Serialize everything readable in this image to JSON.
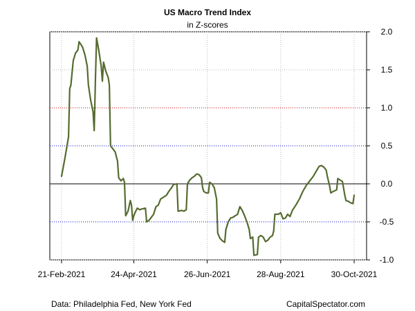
{
  "chart_data": {
    "type": "line",
    "title": "US Macro Trend Index",
    "subtitle": "in Z-scores",
    "xlabel": "",
    "ylabel": "",
    "x_tick_labels": [
      "21-Feb-2021",
      "24-Apr-2021",
      "26-Jun-2021",
      "28-Aug-2021",
      "30-Oct-2021"
    ],
    "x_ticks": [
      "2021-02-21",
      "2021-04-24",
      "2021-06-26",
      "2021-08-28",
      "2021-10-30"
    ],
    "y_ticks": [
      2.0,
      1.5,
      1.0,
      0.5,
      0.0,
      -0.5,
      -1.0
    ],
    "y_tick_labels": [
      "2.0",
      "1.5",
      "1.0",
      "0.5",
      "0.0",
      "-0.5",
      "-1.0"
    ],
    "ylim": [
      -1.0,
      2.0
    ],
    "y_axis_side": "right",
    "grid": true,
    "reference_lines": [
      {
        "y": 1.0,
        "color": "#cc0000",
        "style": "dotted"
      },
      {
        "y": 0.5,
        "color": "#0000cc",
        "style": "dotted"
      },
      {
        "y": 0.0,
        "color": "#000000",
        "style": "solid"
      },
      {
        "y": -0.5,
        "color": "#0000cc",
        "style": "dotted"
      }
    ],
    "series_color": "#556b2f",
    "series": [
      {
        "name": "",
        "points": [
          [
            "2021-02-21",
            0.1
          ],
          [
            "2021-02-24",
            0.35
          ],
          [
            "2021-02-27",
            0.62
          ],
          [
            "2021-02-28",
            1.25
          ],
          [
            "2021-03-01",
            1.3
          ],
          [
            "2021-03-03",
            1.62
          ],
          [
            "2021-03-05",
            1.72
          ],
          [
            "2021-03-07",
            1.76
          ],
          [
            "2021-03-08",
            1.87
          ],
          [
            "2021-03-11",
            1.8
          ],
          [
            "2021-03-13",
            1.7
          ],
          [
            "2021-03-15",
            1.55
          ],
          [
            "2021-03-16",
            1.3
          ],
          [
            "2021-03-18",
            1.1
          ],
          [
            "2021-03-20",
            0.95
          ],
          [
            "2021-03-21",
            0.7
          ],
          [
            "2021-03-22",
            1.35
          ],
          [
            "2021-03-23",
            1.92
          ],
          [
            "2021-03-25",
            1.75
          ],
          [
            "2021-03-27",
            1.55
          ],
          [
            "2021-03-28",
            1.35
          ],
          [
            "2021-03-29",
            1.6
          ],
          [
            "2021-03-31",
            1.48
          ],
          [
            "2021-04-02",
            1.4
          ],
          [
            "2021-04-03",
            1.3
          ],
          [
            "2021-04-04",
            0.5
          ],
          [
            "2021-04-06",
            0.46
          ],
          [
            "2021-04-08",
            0.42
          ],
          [
            "2021-04-10",
            0.3
          ],
          [
            "2021-04-11",
            0.08
          ],
          [
            "2021-04-13",
            0.04
          ],
          [
            "2021-04-15",
            0.07
          ],
          [
            "2021-04-16",
            0.02
          ],
          [
            "2021-04-17",
            -0.42
          ],
          [
            "2021-04-19",
            -0.36
          ],
          [
            "2021-04-21",
            -0.22
          ],
          [
            "2021-04-22",
            -0.28
          ],
          [
            "2021-04-23",
            -0.48
          ],
          [
            "2021-04-24",
            -0.42
          ],
          [
            "2021-04-25",
            -0.38
          ],
          [
            "2021-04-27",
            -0.32
          ],
          [
            "2021-04-29",
            -0.34
          ],
          [
            "2021-05-01",
            -0.33
          ],
          [
            "2021-05-04",
            -0.32
          ],
          [
            "2021-05-05",
            -0.5
          ],
          [
            "2021-05-07",
            -0.48
          ],
          [
            "2021-05-09",
            -0.44
          ],
          [
            "2021-05-11",
            -0.4
          ],
          [
            "2021-05-13",
            -0.3
          ],
          [
            "2021-05-15",
            -0.28
          ],
          [
            "2021-05-17",
            -0.2
          ],
          [
            "2021-05-19",
            -0.18
          ],
          [
            "2021-05-22",
            -0.15
          ],
          [
            "2021-05-24",
            -0.1
          ],
          [
            "2021-05-26",
            -0.06
          ],
          [
            "2021-05-28",
            -0.01
          ],
          [
            "2021-05-31",
            0.0
          ],
          [
            "2021-06-01",
            -0.36
          ],
          [
            "2021-06-04",
            -0.35
          ],
          [
            "2021-06-06",
            -0.36
          ],
          [
            "2021-06-08",
            -0.34
          ],
          [
            "2021-06-09",
            0.0
          ],
          [
            "2021-06-11",
            0.05
          ],
          [
            "2021-06-13",
            0.08
          ],
          [
            "2021-06-15",
            0.1
          ],
          [
            "2021-06-17",
            0.13
          ],
          [
            "2021-06-19",
            0.12
          ],
          [
            "2021-06-21",
            0.08
          ],
          [
            "2021-06-22",
            -0.05
          ],
          [
            "2021-06-23",
            -0.1
          ],
          [
            "2021-06-25",
            -0.12
          ],
          [
            "2021-06-27",
            -0.12
          ],
          [
            "2021-06-28",
            0.02
          ],
          [
            "2021-06-30",
            0.0
          ],
          [
            "2021-07-02",
            -0.05
          ],
          [
            "2021-07-04",
            -0.2
          ],
          [
            "2021-07-05",
            -0.65
          ],
          [
            "2021-07-07",
            -0.72
          ],
          [
            "2021-07-09",
            -0.75
          ],
          [
            "2021-07-11",
            -0.77
          ],
          [
            "2021-07-12",
            -0.6
          ],
          [
            "2021-07-14",
            -0.5
          ],
          [
            "2021-07-16",
            -0.45
          ],
          [
            "2021-07-18",
            -0.44
          ],
          [
            "2021-07-20",
            -0.42
          ],
          [
            "2021-07-22",
            -0.4
          ],
          [
            "2021-07-24",
            -0.3
          ],
          [
            "2021-07-26",
            -0.35
          ],
          [
            "2021-07-28",
            -0.42
          ],
          [
            "2021-07-30",
            -0.5
          ],
          [
            "2021-08-01",
            -0.6
          ],
          [
            "2021-08-02",
            -0.72
          ],
          [
            "2021-08-04",
            -0.7
          ],
          [
            "2021-08-05",
            -0.94
          ],
          [
            "2021-08-08",
            -0.93
          ],
          [
            "2021-08-09",
            -0.7
          ],
          [
            "2021-08-11",
            -0.68
          ],
          [
            "2021-08-13",
            -0.7
          ],
          [
            "2021-08-15",
            -0.76
          ],
          [
            "2021-08-17",
            -0.74
          ],
          [
            "2021-08-19",
            -0.7
          ],
          [
            "2021-08-21",
            -0.68
          ],
          [
            "2021-08-22",
            -0.62
          ],
          [
            "2021-08-23",
            -0.4
          ],
          [
            "2021-08-26",
            -0.4
          ],
          [
            "2021-08-28",
            -0.38
          ],
          [
            "2021-08-30",
            -0.46
          ],
          [
            "2021-09-01",
            -0.45
          ],
          [
            "2021-09-03",
            -0.4
          ],
          [
            "2021-09-05",
            -0.43
          ],
          [
            "2021-09-07",
            -0.35
          ],
          [
            "2021-09-10",
            -0.28
          ],
          [
            "2021-09-13",
            -0.2
          ],
          [
            "2021-09-16",
            -0.1
          ],
          [
            "2021-09-19",
            -0.02
          ],
          [
            "2021-09-22",
            0.04
          ],
          [
            "2021-09-25",
            0.1
          ],
          [
            "2021-09-28",
            0.18
          ],
          [
            "2021-09-30",
            0.23
          ],
          [
            "2021-10-02",
            0.24
          ],
          [
            "2021-10-04",
            0.22
          ],
          [
            "2021-10-06",
            0.18
          ],
          [
            "2021-10-07",
            0.1
          ],
          [
            "2021-10-09",
            -0.03
          ],
          [
            "2021-10-10",
            -0.12
          ],
          [
            "2021-10-12",
            -0.1
          ],
          [
            "2021-10-15",
            -0.08
          ],
          [
            "2021-10-16",
            0.07
          ],
          [
            "2021-10-18",
            0.05
          ],
          [
            "2021-10-20",
            0.03
          ],
          [
            "2021-10-22",
            -0.15
          ],
          [
            "2021-10-23",
            -0.22
          ],
          [
            "2021-10-25",
            -0.23
          ],
          [
            "2021-10-27",
            -0.25
          ],
          [
            "2021-10-29",
            -0.26
          ],
          [
            "2021-10-30",
            -0.15
          ]
        ]
      }
    ]
  },
  "footer": {
    "source": "Data: Philadelphia Fed, New York Fed",
    "credit": "CapitalSpectator.com"
  }
}
